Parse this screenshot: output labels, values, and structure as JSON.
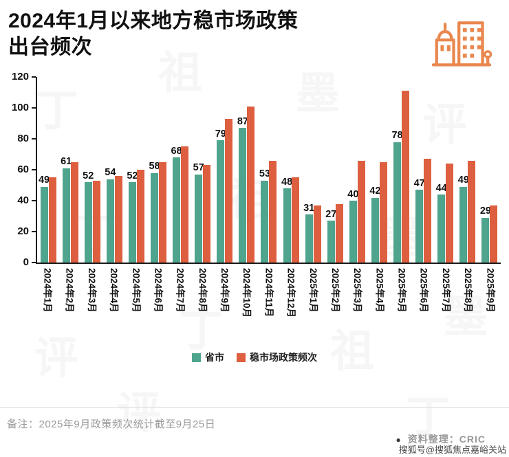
{
  "header": {
    "title_line1": "2024年1月以来地方稳市场政策",
    "title_line2": "出台频次",
    "icon_color": "#E9874E"
  },
  "chart_data": {
    "type": "bar",
    "title": "2024年1月以来地方稳市场政策出台频次",
    "categories": [
      "2024年1月",
      "2024年2月",
      "2024年3月",
      "2024年4月",
      "2024年5月",
      "2024年6月",
      "2024年7月",
      "2024年8月",
      "2024年9月",
      "2024年10月",
      "2024年11月",
      "2024年12月",
      "2025年1月",
      "2025年2月",
      "2025年3月",
      "2025年4月",
      "2025年5月",
      "2025年6月",
      "2025年7月",
      "2025年8月",
      "2025年9月"
    ],
    "series": [
      {
        "name": "省市",
        "color": "#4FA48E",
        "labeled": true,
        "values": [
          49,
          61,
          52,
          54,
          52,
          58,
          68,
          57,
          79,
          87,
          53,
          48,
          31,
          27,
          40,
          42,
          78,
          47,
          44,
          49,
          29
        ]
      },
      {
        "name": "稳市场政策频次",
        "color": "#DD5F3F",
        "labeled": false,
        "values": [
          55,
          65,
          53,
          56,
          60,
          65,
          75,
          63,
          93,
          101,
          66,
          55,
          37,
          38,
          66,
          65,
          111,
          67,
          64,
          66,
          37
        ]
      }
    ],
    "ylim": [
      0,
      120
    ],
    "yticks": [
      0,
      20,
      40,
      60,
      80,
      100,
      120
    ],
    "grid": false,
    "legend_position": "bottom"
  },
  "footer": {
    "note": "备注：2025年9月政策频次统计截至9月25日",
    "bullet": "●",
    "source": "资料整理：CRIC",
    "watermark": "搜狐号@搜狐焦点嘉峪关站"
  },
  "background_watermark_chars": [
    "丁",
    "祖",
    "墨",
    "评"
  ]
}
